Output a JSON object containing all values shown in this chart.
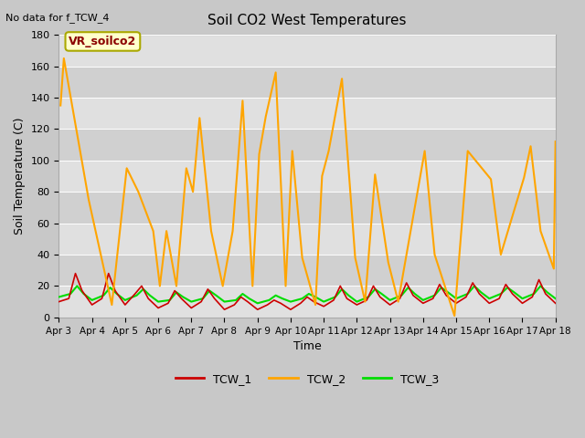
{
  "title": "Soil CO2 West Temperatures",
  "subtitle": "No data for f_TCW_4",
  "xlabel": "Time",
  "ylabel": "Soil Temperature (C)",
  "ylim": [
    0,
    180
  ],
  "yticks": [
    0,
    20,
    40,
    60,
    80,
    100,
    120,
    140,
    160,
    180
  ],
  "annotation_text": "VR_soilco2",
  "annotation_bg": "#ffffcc",
  "annotation_border": "#aaa800",
  "colors": {
    "TCW_1": "#cc0000",
    "TCW_2": "#ffa500",
    "TCW_3": "#00dd00"
  },
  "x_dates": [
    "Apr 3",
    "Apr 4",
    "Apr 5",
    "Apr 6",
    "Apr 7",
    "Apr 8",
    "Apr 9",
    "Apr 10",
    "Apr 11",
    "Apr 12",
    "Apr 13",
    "Apr 14",
    "Apr 15",
    "Apr 16",
    "Apr 17",
    "Apr 18"
  ],
  "tcw2_x": [
    0.05,
    0.15,
    0.9,
    1.6,
    2.05,
    2.4,
    2.85,
    3.05,
    3.25,
    3.55,
    3.85,
    4.05,
    4.25,
    4.6,
    4.95,
    5.25,
    5.55,
    5.85,
    6.05,
    6.25,
    6.55,
    6.85,
    7.05,
    7.35,
    7.75,
    7.95,
    8.15,
    8.55,
    8.95,
    9.25,
    9.55,
    9.95,
    10.25,
    11.05,
    11.35,
    11.95,
    12.35,
    13.05,
    13.35,
    14.05,
    14.25,
    14.55,
    14.95,
    15.0
  ],
  "tcw2_y": [
    135,
    165,
    75,
    8,
    95,
    80,
    55,
    20,
    55,
    20,
    95,
    80,
    127,
    55,
    20,
    55,
    138,
    20,
    104,
    128,
    156,
    20,
    106,
    38,
    8,
    90,
    106,
    152,
    38,
    10,
    91,
    35,
    10,
    106,
    40,
    1,
    106,
    88,
    40,
    89,
    109,
    55,
    31,
    112
  ],
  "tcw1_x": [
    0.0,
    0.3,
    0.5,
    0.7,
    1.0,
    1.3,
    1.5,
    1.7,
    2.0,
    2.3,
    2.5,
    2.7,
    3.0,
    3.3,
    3.5,
    3.7,
    4.0,
    4.3,
    4.5,
    4.7,
    5.0,
    5.3,
    5.5,
    5.7,
    6.0,
    6.3,
    6.5,
    6.7,
    7.0,
    7.3,
    7.5,
    7.7,
    8.0,
    8.3,
    8.5,
    8.7,
    9.0,
    9.3,
    9.5,
    9.7,
    10.0,
    10.3,
    10.5,
    10.7,
    11.0,
    11.3,
    11.5,
    11.7,
    12.0,
    12.3,
    12.5,
    12.7,
    13.0,
    13.3,
    13.5,
    13.7,
    14.0,
    14.3,
    14.5,
    14.7,
    15.0
  ],
  "tcw1_y": [
    10,
    12,
    28,
    17,
    8,
    12,
    28,
    17,
    8,
    15,
    20,
    12,
    6,
    9,
    17,
    12,
    6,
    10,
    18,
    12,
    5,
    8,
    13,
    10,
    5,
    8,
    11,
    9,
    5,
    9,
    13,
    10,
    7,
    11,
    20,
    12,
    8,
    11,
    20,
    13,
    8,
    12,
    22,
    14,
    9,
    12,
    21,
    14,
    9,
    13,
    22,
    15,
    9,
    12,
    21,
    15,
    9,
    13,
    24,
    15,
    9
  ],
  "tcw3_x": [
    0.0,
    0.35,
    0.55,
    0.75,
    1.0,
    1.35,
    1.55,
    1.75,
    2.0,
    2.35,
    2.55,
    2.75,
    3.0,
    3.35,
    3.55,
    3.75,
    4.0,
    4.35,
    4.55,
    4.75,
    5.0,
    5.35,
    5.55,
    5.75,
    6.0,
    6.35,
    6.55,
    6.75,
    7.0,
    7.35,
    7.55,
    7.75,
    8.0,
    8.35,
    8.55,
    8.75,
    9.0,
    9.35,
    9.55,
    9.75,
    10.0,
    10.35,
    10.55,
    10.75,
    11.0,
    11.35,
    11.55,
    11.75,
    12.0,
    12.35,
    12.55,
    12.75,
    13.0,
    13.35,
    13.55,
    13.75,
    14.0,
    14.35,
    14.55,
    14.75,
    15.0
  ],
  "tcw3_y": [
    13,
    15,
    20,
    15,
    11,
    14,
    19,
    15,
    11,
    14,
    18,
    14,
    10,
    11,
    16,
    13,
    10,
    12,
    17,
    14,
    10,
    11,
    15,
    12,
    9,
    11,
    14,
    12,
    10,
    12,
    15,
    13,
    10,
    13,
    18,
    14,
    10,
    13,
    18,
    15,
    11,
    14,
    19,
    15,
    11,
    14,
    19,
    16,
    12,
    15,
    20,
    16,
    12,
    15,
    19,
    16,
    12,
    15,
    20,
    16,
    12
  ]
}
